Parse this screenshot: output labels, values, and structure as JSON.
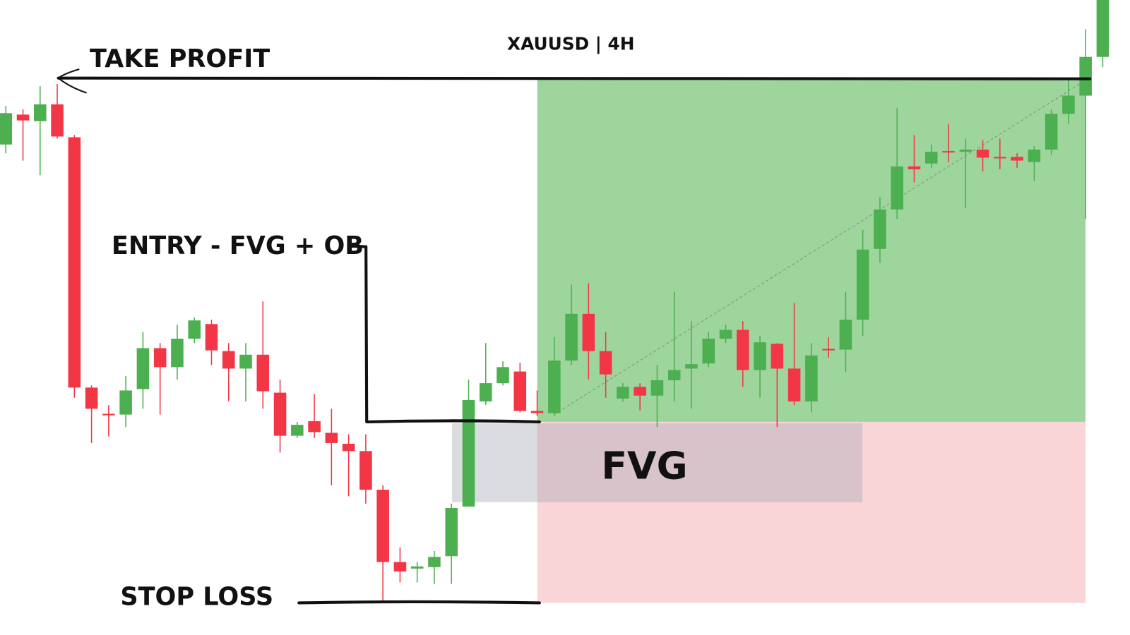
{
  "chart_data": {
    "type": "candlestick",
    "title": "XAUUSD | 4H",
    "up_color": "#4caf50",
    "down_color": "#f23645",
    "ylim": [
      0,
      870
    ],
    "open": [
      672,
      713,
      704,
      727,
      682,
      339,
      303,
      302,
      337,
      393,
      367,
      406,
      426,
      389,
      365,
      384,
      332,
      273,
      293,
      277,
      262,
      252,
      199,
      100,
      91,
      93,
      108,
      176,
      320,
      345,
      361,
      307,
      304,
      376,
      440,
      389,
      324,
      340,
      328,
      349,
      365,
      372,
      406,
      418,
      363,
      399,
      365,
      320,
      392,
      391,
      432,
      529,
      583,
      642,
      646,
      663,
      662,
      665,
      655,
      655,
      648,
      665,
      714,
      739,
      792
    ],
    "high": [
      725,
      720,
      752,
      755,
      685,
      342,
      315,
      355,
      415,
      400,
      425,
      435,
      432,
      400,
      400,
      457,
      350,
      292,
      330,
      310,
      275,
      275,
      205,
      120,
      100,
      115,
      180,
      350,
      400,
      375,
      373,
      335,
      408,
      480,
      482,
      415,
      345,
      345,
      370,
      470,
      430,
      415,
      425,
      430,
      410,
      400,
      455,
      400,
      408,
      470,
      555,
      600,
      722,
      685,
      672,
      700,
      680,
      678,
      680,
      660,
      670,
      720,
      762,
      830,
      870
    ],
    "low": [
      660,
      650,
      630,
      680,
      325,
      263,
      272,
      285,
      310,
      302,
      350,
      400,
      370,
      320,
      320,
      310,
      250,
      270,
      270,
      205,
      190,
      180,
      45,
      72,
      72,
      70,
      70,
      176,
      315,
      342,
      305,
      300,
      300,
      370,
      350,
      325,
      320,
      308,
      285,
      320,
      310,
      367,
      400,
      340,
      325,
      285,
      315,
      305,
      380,
      360,
      410,
      510,
      570,
      620,
      640,
      648,
      585,
      635,
      638,
      640,
      622,
      658,
      700,
      570,
      778
    ],
    "close": [
      715,
      705,
      727,
      683,
      339,
      310,
      302,
      335,
      393,
      367,
      406,
      431,
      390,
      365,
      384,
      334,
      273,
      288,
      278,
      263,
      252,
      199,
      100,
      87,
      94,
      107,
      174,
      322,
      345,
      367,
      307,
      304,
      376,
      440,
      389,
      357,
      340,
      328,
      349,
      363,
      371,
      406,
      418,
      363,
      401,
      365,
      320,
      383,
      390,
      432,
      528,
      583,
      642,
      638,
      662,
      661,
      665,
      654,
      653,
      650,
      665,
      714,
      739,
      792,
      870
    ],
    "annotations": [
      {
        "text": "TAKE PROFIT",
        "value": 763
      },
      {
        "text": "ENTRY - FVG + OB",
        "value": 292
      },
      {
        "text": "STOP LOSS",
        "value": 44
      }
    ],
    "fvg": {
      "label": "FVG",
      "low": 182,
      "high": 290
    }
  }
}
